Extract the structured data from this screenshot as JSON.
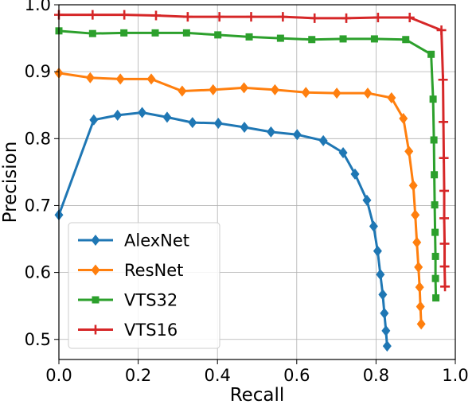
{
  "chart_data": {
    "type": "line",
    "xlabel": "Recall",
    "ylabel": "Precision",
    "xlim": [
      0.0,
      1.0
    ],
    "ylim": [
      0.47,
      1.0
    ],
    "xticks": [
      "0.0",
      "0.2",
      "0.4",
      "0.6",
      "0.8",
      "1.0"
    ],
    "yticks": [
      "0.5",
      "0.6",
      "0.7",
      "0.8",
      "0.9",
      "1.0"
    ],
    "grid": true,
    "legend_position": "bottom-left",
    "series": [
      {
        "name": "AlexNet",
        "color": "#1f77b4",
        "marker": "diamond",
        "points": [
          [
            0.0,
            0.686
          ],
          [
            0.088,
            0.828
          ],
          [
            0.148,
            0.835
          ],
          [
            0.21,
            0.839
          ],
          [
            0.273,
            0.832
          ],
          [
            0.337,
            0.824
          ],
          [
            0.402,
            0.823
          ],
          [
            0.468,
            0.817
          ],
          [
            0.535,
            0.81
          ],
          [
            0.601,
            0.806
          ],
          [
            0.667,
            0.797
          ],
          [
            0.717,
            0.779
          ],
          [
            0.747,
            0.747
          ],
          [
            0.777,
            0.708
          ],
          [
            0.794,
            0.669
          ],
          [
            0.804,
            0.632
          ],
          [
            0.811,
            0.597
          ],
          [
            0.817,
            0.567
          ],
          [
            0.821,
            0.539
          ],
          [
            0.825,
            0.513
          ],
          [
            0.828,
            0.49
          ]
        ]
      },
      {
        "name": "ResNet",
        "color": "#ff7f0e",
        "marker": "diamond",
        "points": [
          [
            0.0,
            0.898
          ],
          [
            0.079,
            0.891
          ],
          [
            0.155,
            0.889
          ],
          [
            0.233,
            0.889
          ],
          [
            0.311,
            0.871
          ],
          [
            0.389,
            0.873
          ],
          [
            0.467,
            0.876
          ],
          [
            0.545,
            0.873
          ],
          [
            0.623,
            0.869
          ],
          [
            0.701,
            0.868
          ],
          [
            0.779,
            0.868
          ],
          [
            0.839,
            0.861
          ],
          [
            0.869,
            0.83
          ],
          [
            0.883,
            0.781
          ],
          [
            0.894,
            0.73
          ],
          [
            0.899,
            0.686
          ],
          [
            0.903,
            0.645
          ],
          [
            0.907,
            0.608
          ],
          [
            0.91,
            0.578
          ],
          [
            0.912,
            0.549
          ],
          [
            0.914,
            0.523
          ]
        ]
      },
      {
        "name": "VTS32",
        "color": "#2ca02c",
        "marker": "square",
        "points": [
          [
            0.0,
            0.961
          ],
          [
            0.085,
            0.957
          ],
          [
            0.164,
            0.958
          ],
          [
            0.243,
            0.958
          ],
          [
            0.322,
            0.958
          ],
          [
            0.401,
            0.955
          ],
          [
            0.48,
            0.952
          ],
          [
            0.559,
            0.95
          ],
          [
            0.638,
            0.948
          ],
          [
            0.717,
            0.949
          ],
          [
            0.796,
            0.949
          ],
          [
            0.875,
            0.948
          ],
          [
            0.939,
            0.926
          ],
          [
            0.944,
            0.859
          ],
          [
            0.946,
            0.798
          ],
          [
            0.947,
            0.746
          ],
          [
            0.948,
            0.701
          ],
          [
            0.949,
            0.66
          ],
          [
            0.95,
            0.624
          ],
          [
            0.95,
            0.591
          ],
          [
            0.951,
            0.562
          ]
        ]
      },
      {
        "name": "VTS16",
        "color": "#d62728",
        "marker": "plus",
        "points": [
          [
            0.0,
            0.985
          ],
          [
            0.085,
            0.985
          ],
          [
            0.165,
            0.985
          ],
          [
            0.245,
            0.984
          ],
          [
            0.325,
            0.982
          ],
          [
            0.405,
            0.982
          ],
          [
            0.485,
            0.982
          ],
          [
            0.565,
            0.982
          ],
          [
            0.645,
            0.98
          ],
          [
            0.725,
            0.98
          ],
          [
            0.805,
            0.981
          ],
          [
            0.885,
            0.981
          ],
          [
            0.965,
            0.962
          ],
          [
            0.969,
            0.888
          ],
          [
            0.97,
            0.825
          ],
          [
            0.971,
            0.771
          ],
          [
            0.972,
            0.722
          ],
          [
            0.972,
            0.681
          ],
          [
            0.973,
            0.643
          ],
          [
            0.973,
            0.609
          ],
          [
            0.974,
            0.579
          ]
        ]
      }
    ]
  }
}
